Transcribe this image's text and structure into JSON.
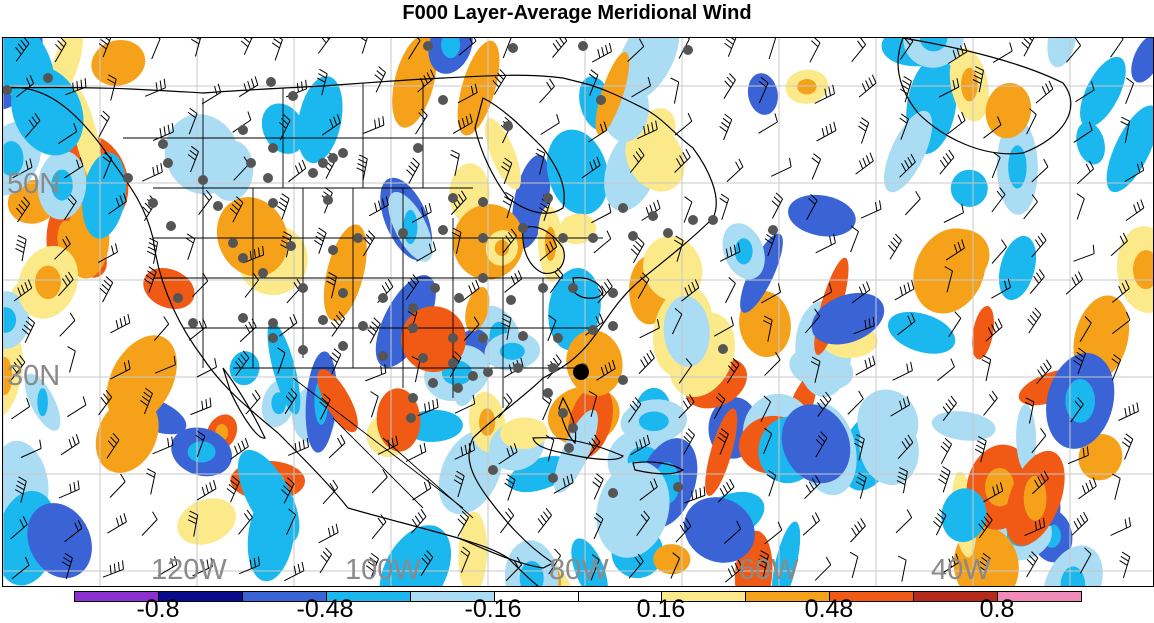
{
  "title": "F000 Layer-Average Meridional Wind",
  "map": {
    "lat_labels": [
      "50N",
      "30N"
    ],
    "lon_labels": [
      "120W",
      "100W",
      "80W",
      "60W",
      "40W"
    ],
    "marker_color": "#555555",
    "highlight_marker_color": "#000000"
  },
  "colorbar": {
    "colors": [
      "#8b2fd0",
      "#0a0a8c",
      "#3a64d6",
      "#1ab8ef",
      "#aadcf4",
      "#ffffff",
      "#ffffff",
      "#fce98a",
      "#f5a21a",
      "#f05a14",
      "#b52a1a",
      "#f08ab8"
    ],
    "labels": [
      "-0.8",
      "-0.48",
      "-0.16",
      "0.16",
      "0.48",
      "0.8"
    ]
  }
}
